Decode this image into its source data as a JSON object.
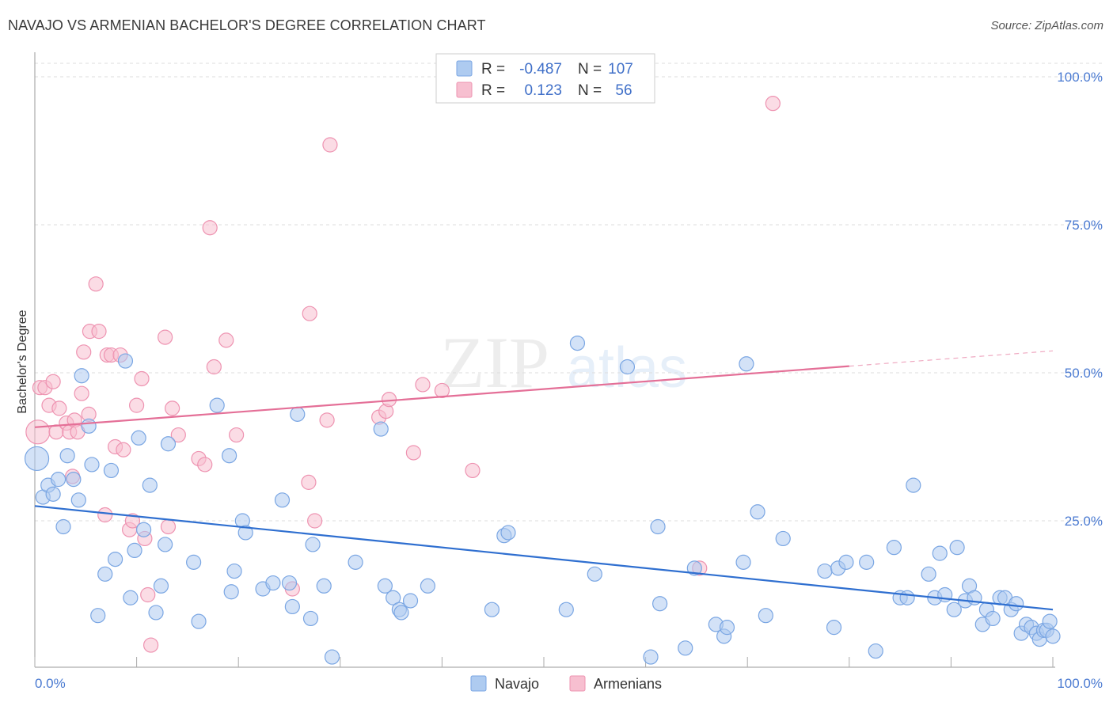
{
  "title": "NAVAJO VS ARMENIAN BACHELOR'S DEGREE CORRELATION CHART",
  "source": "Source: ZipAtlas.com",
  "colors": {
    "navajo_fill": "#aecbf0",
    "navajo_stroke": "#7aa6e3",
    "navajo_line": "#2f6fd0",
    "armenian_fill": "#f7bfd0",
    "armenian_stroke": "#ee93b1",
    "armenian_line": "#e46f97",
    "tick_text": "#4a7ad1",
    "grid": "#dddddd"
  },
  "legend": {
    "rows": [
      {
        "r_label": "R =",
        "r_value": "-0.487",
        "n_label": "N =",
        "n_value": "107"
      },
      {
        "r_label": "R =",
        "r_value": "0.123",
        "n_label": "N =",
        "n_value": "56"
      }
    ]
  },
  "watermark": {
    "zip": "ZIP",
    "atlas": "atlas"
  },
  "chart_data": {
    "type": "scatter",
    "title": "NAVAJO VS ARMENIAN BACHELOR'S DEGREE CORRELATION CHART",
    "xlabel": "",
    "ylabel": "Bachelor's Degree",
    "xlim": [
      0,
      100
    ],
    "ylim": [
      0,
      100
    ],
    "x_tick_labels": [
      {
        "value": 0,
        "label": "0.0%"
      },
      {
        "value": 100,
        "label": "100.0%"
      }
    ],
    "y_tick_labels": [
      {
        "value": 25,
        "label": "25.0%"
      },
      {
        "value": 50,
        "label": "50.0%"
      },
      {
        "value": 75,
        "label": "75.0%"
      },
      {
        "value": 100,
        "label": "100.0%"
      }
    ],
    "series": [
      {
        "name": "Navajo",
        "r": -0.487,
        "n": 107,
        "trend": {
          "x0": 0,
          "y0": 27.5,
          "x1": 100,
          "y1": 10.0,
          "solid_to": 100
        },
        "points": [
          [
            0.2,
            35.5,
            15
          ],
          [
            0.8,
            29,
            9
          ],
          [
            1.3,
            31,
            9
          ],
          [
            1.8,
            29.5,
            9
          ],
          [
            2.3,
            32,
            9
          ],
          [
            2.8,
            24,
            9
          ],
          [
            3.2,
            36,
            9
          ],
          [
            3.8,
            32,
            9
          ],
          [
            4.3,
            28.5,
            9
          ],
          [
            4.6,
            49.5,
            9
          ],
          [
            5.3,
            41,
            9
          ],
          [
            5.6,
            34.5,
            9
          ],
          [
            6.2,
            9,
            9
          ],
          [
            6.9,
            16,
            9
          ],
          [
            7.5,
            33.5,
            9
          ],
          [
            7.9,
            18.5,
            9
          ],
          [
            8.9,
            52,
            9
          ],
          [
            9.4,
            12,
            9
          ],
          [
            9.8,
            20,
            9
          ],
          [
            10.2,
            39,
            9
          ],
          [
            10.7,
            23.5,
            9
          ],
          [
            11.3,
            31,
            9
          ],
          [
            11.9,
            9.5,
            9
          ],
          [
            12.4,
            14,
            9
          ],
          [
            12.8,
            21,
            9
          ],
          [
            13.1,
            38,
            9
          ],
          [
            15.6,
            18,
            9
          ],
          [
            16.1,
            8,
            9
          ],
          [
            17.9,
            44.5,
            9
          ],
          [
            19.1,
            36,
            9
          ],
          [
            19.3,
            13,
            9
          ],
          [
            19.6,
            16.5,
            9
          ],
          [
            20.4,
            25,
            9
          ],
          [
            20.7,
            23,
            9
          ],
          [
            22.4,
            13.5,
            9
          ],
          [
            23.4,
            14.5,
            9
          ],
          [
            24.3,
            28.5,
            9
          ],
          [
            25.0,
            14.5,
            9
          ],
          [
            25.3,
            10.5,
            9
          ],
          [
            25.8,
            43,
            9
          ],
          [
            27.1,
            8.5,
            9
          ],
          [
            27.3,
            21,
            9
          ],
          [
            28.4,
            14,
            9
          ],
          [
            29.2,
            2,
            9
          ],
          [
            31.5,
            18,
            9
          ],
          [
            34.0,
            40.5,
            9
          ],
          [
            34.4,
            14,
            9
          ],
          [
            35.2,
            12,
            9
          ],
          [
            35.8,
            10,
            9
          ],
          [
            36.0,
            9.5,
            9
          ],
          [
            36.9,
            11.5,
            9
          ],
          [
            38.6,
            14,
            9
          ],
          [
            44.9,
            10,
            9
          ],
          [
            46.1,
            22.5,
            9
          ],
          [
            46.5,
            23,
            9
          ],
          [
            52.2,
            10,
            9
          ],
          [
            53.3,
            55,
            9
          ],
          [
            55.0,
            16,
            9
          ],
          [
            58.2,
            51,
            9
          ],
          [
            60.5,
            2,
            9
          ],
          [
            61.2,
            24,
            9
          ],
          [
            61.4,
            11,
            9
          ],
          [
            63.9,
            3.5,
            9
          ],
          [
            64.8,
            17,
            9
          ],
          [
            66.9,
            7.5,
            9
          ],
          [
            67.7,
            5.5,
            9
          ],
          [
            68.0,
            7,
            9
          ],
          [
            69.6,
            18,
            9
          ],
          [
            69.9,
            51.5,
            9
          ],
          [
            71.0,
            26.5,
            9
          ],
          [
            71.8,
            9,
            9
          ],
          [
            73.5,
            22,
            9
          ],
          [
            77.6,
            16.5,
            9
          ],
          [
            78.5,
            7,
            9
          ],
          [
            78.9,
            17,
            9
          ],
          [
            79.7,
            18,
            9
          ],
          [
            81.7,
            18,
            9
          ],
          [
            82.6,
            3,
            9
          ],
          [
            84.4,
            20.5,
            9
          ],
          [
            85.0,
            12,
            9
          ],
          [
            85.7,
            12,
            9
          ],
          [
            86.3,
            31,
            9
          ],
          [
            87.8,
            16,
            9
          ],
          [
            88.4,
            12,
            9
          ],
          [
            88.9,
            19.5,
            9
          ],
          [
            89.4,
            12.5,
            9
          ],
          [
            90.3,
            10,
            9
          ],
          [
            90.6,
            20.5,
            9
          ],
          [
            91.4,
            11.5,
            9
          ],
          [
            91.8,
            14,
            9
          ],
          [
            92.3,
            12,
            9
          ],
          [
            93.1,
            7.5,
            9
          ],
          [
            93.5,
            10,
            9
          ],
          [
            94.1,
            8.5,
            9
          ],
          [
            94.8,
            12,
            9
          ],
          [
            95.3,
            12,
            9
          ],
          [
            95.9,
            10,
            9
          ],
          [
            96.4,
            11,
            9
          ],
          [
            96.9,
            6,
            9
          ],
          [
            97.4,
            7.5,
            9
          ],
          [
            97.9,
            7,
            9
          ],
          [
            98.4,
            6,
            9
          ],
          [
            98.7,
            5,
            9
          ],
          [
            99.1,
            6.5,
            9
          ],
          [
            99.4,
            6.5,
            9
          ],
          [
            99.7,
            8,
            9
          ],
          [
            100.0,
            5.5,
            9
          ]
        ]
      },
      {
        "name": "Armenians",
        "r": 0.123,
        "n": 56,
        "trend": {
          "x0": 0,
          "y0": 40.8,
          "x1": 100,
          "y1": 53.7,
          "solid_to": 80
        },
        "points": [
          [
            0.3,
            40,
            15
          ],
          [
            0.5,
            47.5,
            9
          ],
          [
            1.0,
            47.5,
            9
          ],
          [
            1.4,
            44.5,
            9
          ],
          [
            1.8,
            48.5,
            9
          ],
          [
            2.1,
            40,
            9
          ],
          [
            2.4,
            44,
            9
          ],
          [
            3.1,
            41.5,
            9
          ],
          [
            3.4,
            40,
            9
          ],
          [
            3.7,
            32.5,
            9
          ],
          [
            3.9,
            42,
            9
          ],
          [
            4.2,
            40,
            9
          ],
          [
            4.6,
            46.5,
            9
          ],
          [
            4.8,
            53.5,
            9
          ],
          [
            5.3,
            43,
            9
          ],
          [
            5.4,
            57,
            9
          ],
          [
            6.0,
            65,
            9
          ],
          [
            6.3,
            57,
            9
          ],
          [
            6.9,
            26,
            9
          ],
          [
            7.1,
            53,
            9
          ],
          [
            7.5,
            53,
            9
          ],
          [
            7.9,
            37.5,
            9
          ],
          [
            8.4,
            53,
            9
          ],
          [
            8.7,
            37,
            9
          ],
          [
            9.3,
            23.5,
            9
          ],
          [
            9.6,
            25,
            9
          ],
          [
            10.0,
            44.5,
            9
          ],
          [
            10.5,
            49,
            9
          ],
          [
            10.8,
            22,
            9
          ],
          [
            11.1,
            12.5,
            9
          ],
          [
            11.4,
            4,
            9
          ],
          [
            12.8,
            56,
            9
          ],
          [
            13.1,
            24,
            9
          ],
          [
            13.5,
            44,
            9
          ],
          [
            14.1,
            39.5,
            9
          ],
          [
            16.1,
            35.5,
            9
          ],
          [
            16.7,
            34.5,
            9
          ],
          [
            17.2,
            74.5,
            9
          ],
          [
            17.6,
            51,
            9
          ],
          [
            18.8,
            55.5,
            9
          ],
          [
            19.8,
            39.5,
            9
          ],
          [
            25.3,
            13.5,
            9
          ],
          [
            26.9,
            31.5,
            9
          ],
          [
            27.0,
            60,
            9
          ],
          [
            27.5,
            25,
            9
          ],
          [
            28.7,
            42,
            9
          ],
          [
            29.0,
            88.5,
            9
          ],
          [
            33.8,
            42.5,
            9
          ],
          [
            34.5,
            43.5,
            9
          ],
          [
            34.8,
            45.5,
            9
          ],
          [
            37.2,
            36.5,
            9
          ],
          [
            38.1,
            48,
            9
          ],
          [
            40.0,
            47,
            9
          ],
          [
            43.0,
            33.5,
            9
          ],
          [
            65.3,
            17,
            9
          ],
          [
            72.5,
            95.5,
            9
          ]
        ]
      }
    ]
  }
}
